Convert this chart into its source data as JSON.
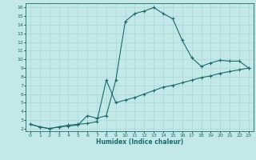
{
  "xlabel": "Humidex (Indice chaleur)",
  "bg_color": "#c2e8e8",
  "line_color": "#1a6b6b",
  "grid_color": "#aad4d4",
  "xlim": [
    -0.5,
    23.5
  ],
  "ylim": [
    1.7,
    16.5
  ],
  "xticks": [
    0,
    1,
    2,
    3,
    4,
    5,
    6,
    7,
    8,
    9,
    10,
    11,
    12,
    13,
    14,
    15,
    16,
    17,
    18,
    19,
    20,
    21,
    22,
    23
  ],
  "yticks": [
    2,
    3,
    4,
    5,
    6,
    7,
    8,
    9,
    10,
    11,
    12,
    13,
    14,
    15,
    16
  ],
  "line1_x": [
    0,
    1,
    2,
    3,
    4,
    5,
    6,
    7,
    8,
    9,
    10,
    11,
    12,
    13,
    14,
    15,
    16,
    17,
    18,
    19,
    20,
    21,
    22,
    23
  ],
  "line1_y": [
    2.5,
    2.2,
    2.0,
    2.2,
    2.3,
    2.4,
    3.5,
    3.2,
    3.5,
    7.6,
    14.4,
    15.3,
    15.6,
    16.0,
    15.3,
    14.7,
    12.2,
    10.2,
    9.2,
    9.6,
    9.9,
    9.8,
    9.8,
    9.0
  ],
  "line2_x": [
    0,
    1,
    2,
    3,
    4,
    5,
    6,
    7,
    8,
    9,
    10,
    11,
    12,
    13,
    14,
    15,
    16,
    17,
    18,
    19,
    20,
    21,
    22,
    23
  ],
  "line2_y": [
    2.5,
    2.2,
    2.0,
    2.2,
    2.4,
    2.5,
    2.6,
    2.8,
    7.6,
    5.0,
    5.3,
    5.6,
    6.0,
    6.4,
    6.8,
    7.0,
    7.3,
    7.6,
    7.9,
    8.1,
    8.4,
    8.6,
    8.8,
    9.0
  ]
}
